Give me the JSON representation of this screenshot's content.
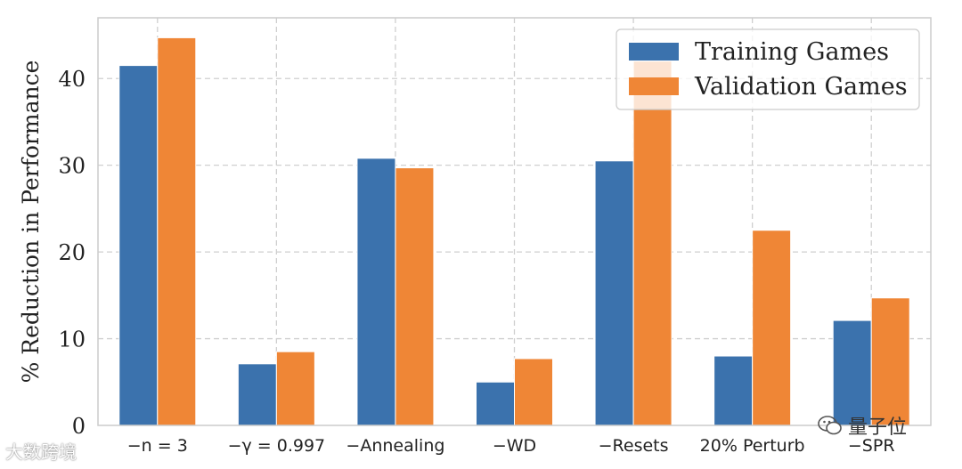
{
  "chart_data": {
    "type": "bar",
    "categories": [
      "−n = 3",
      "−γ = 0.997",
      "−Annealing",
      "−WD",
      "−Resets",
      "20% Perturb",
      "−SPR"
    ],
    "series": [
      {
        "name": "Training Games",
        "color": "#3b72ad",
        "values": [
          41.5,
          7.1,
          30.8,
          5.0,
          30.5,
          8.0,
          12.1
        ]
      },
      {
        "name": "Validation Games",
        "color": "#ef8636",
        "values": [
          44.7,
          8.5,
          29.7,
          7.7,
          42.0,
          22.5,
          14.7
        ]
      }
    ],
    "title": "",
    "xlabel": "",
    "ylabel": "% Reduction in Performance",
    "ylim": [
      0,
      47
    ],
    "yticks": [
      0,
      10,
      20,
      30,
      40
    ],
    "grid": true,
    "legend_position": "top-right"
  },
  "watermarks": {
    "left": "大数跨境",
    "right": "量子位"
  }
}
